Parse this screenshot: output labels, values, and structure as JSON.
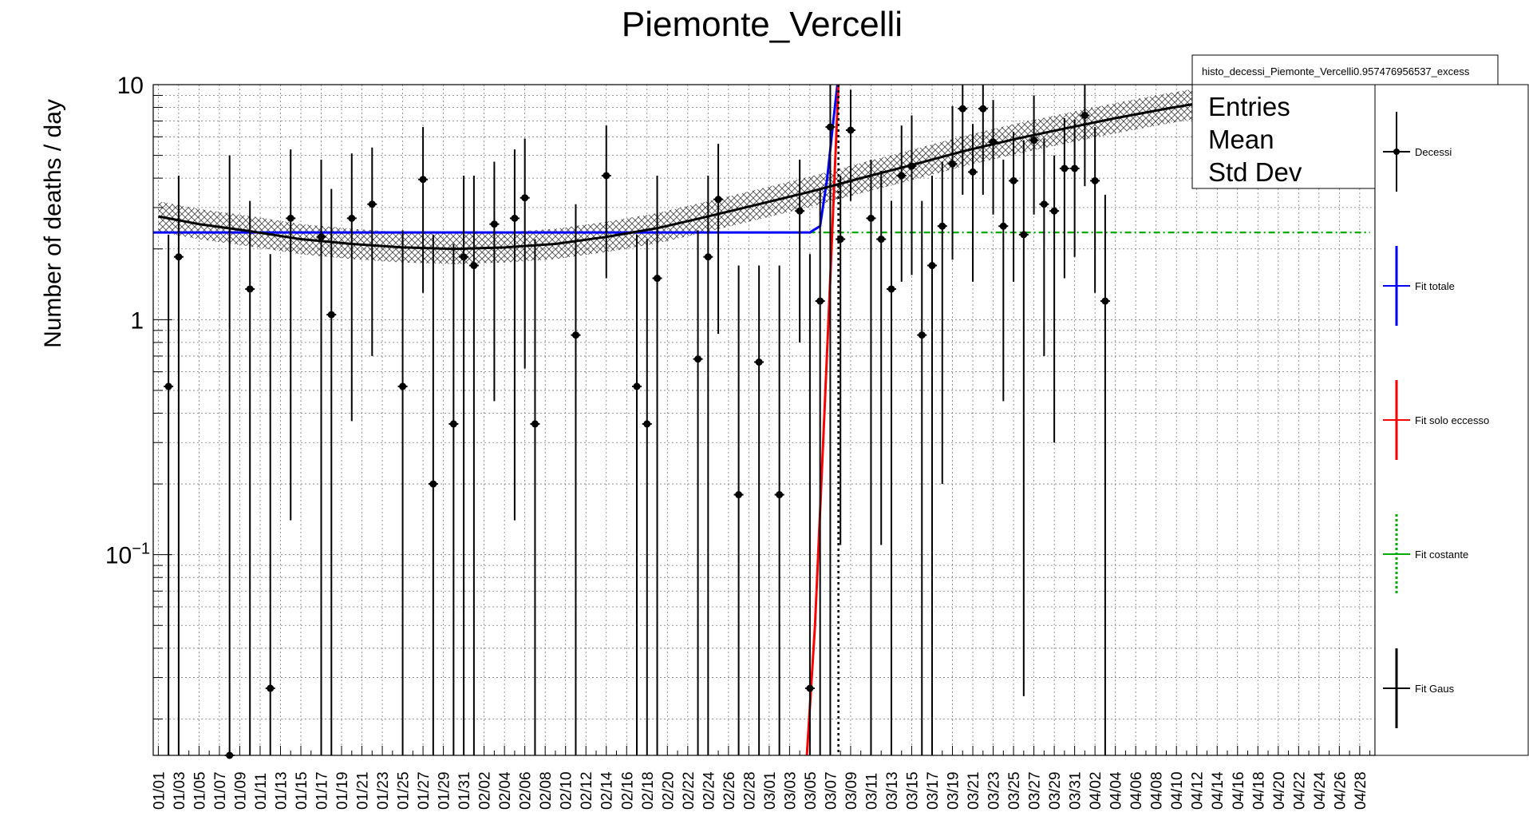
{
  "chart_data": {
    "type": "scatter",
    "title": "Piemonte_Vercelli",
    "ylabel": "Number of deaths / day",
    "xlabel": "",
    "yscale": "log",
    "ylim": [
      0.014,
      10
    ],
    "grid": true,
    "y_ticks": [
      {
        "value": 10,
        "label": "10"
      },
      {
        "value": 1,
        "label": "1"
      },
      {
        "value": 0.1,
        "label": "10",
        "sup": "−1"
      }
    ],
    "x_tick_labels": [
      "01/01",
      "01/03",
      "01/05",
      "01/07",
      "01/09",
      "01/11",
      "01/13",
      "01/15",
      "01/17",
      "01/19",
      "01/21",
      "01/23",
      "01/25",
      "01/27",
      "01/29",
      "01/31",
      "02/02",
      "02/04",
      "02/06",
      "02/08",
      "02/10",
      "02/12",
      "02/14",
      "02/16",
      "02/18",
      "02/20",
      "02/22",
      "02/24",
      "02/26",
      "02/28",
      "03/01",
      "03/03",
      "03/05",
      "03/07",
      "03/09",
      "03/11",
      "03/13",
      "03/15",
      "03/17",
      "03/19",
      "03/21",
      "03/23",
      "03/25",
      "03/27",
      "03/29",
      "03/31",
      "04/02",
      "04/04",
      "04/06",
      "04/08",
      "04/10",
      "04/12",
      "04/14",
      "04/16",
      "04/18",
      "04/20",
      "04/22",
      "04/24",
      "04/26",
      "04/28"
    ],
    "n_days": 120,
    "vertical_marker_day": 67.8,
    "stats_box": {
      "title": "histo_decessi_Piemonte_Vercelli0.957476956537_excess",
      "rows": [
        "Entries",
        "Mean",
        "Std Dev"
      ]
    },
    "legend": {
      "placement": "right",
      "entries": [
        {
          "label": "Decessi",
          "color": "#000000",
          "style": "marker"
        },
        {
          "label": "Fit totale",
          "color": "#0000ff",
          "style": "line"
        },
        {
          "label": "Fit solo eccesso",
          "color": "#ff0000",
          "style": "line"
        },
        {
          "label": "Fit costante",
          "color": "#00aa00",
          "style": "dashed"
        },
        {
          "label": "Fit Gaus",
          "color": "#000000",
          "style": "line"
        }
      ]
    },
    "series": [
      {
        "name": "Decessi",
        "color": "#000000",
        "points": [
          {
            "day": 2,
            "y": 0.52,
            "lo": 0.014,
            "hi": 2.3
          },
          {
            "day": 3,
            "y": 1.85,
            "lo": 0.014,
            "hi": 4.1
          },
          {
            "day": 8,
            "y": 0.014,
            "lo": 0.014,
            "hi": 5.0
          },
          {
            "day": 10,
            "y": 1.35,
            "lo": 0.014,
            "hi": 3.2
          },
          {
            "day": 12,
            "y": 0.027,
            "lo": 0.014,
            "hi": 1.9
          },
          {
            "day": 14,
            "y": 2.7,
            "lo": 0.14,
            "hi": 5.3
          },
          {
            "day": 17,
            "y": 2.25,
            "lo": 0.014,
            "hi": 4.8
          },
          {
            "day": 18,
            "y": 1.05,
            "lo": 0.014,
            "hi": 3.6
          },
          {
            "day": 20,
            "y": 2.7,
            "lo": 0.37,
            "hi": 5.1
          },
          {
            "day": 22,
            "y": 3.1,
            "lo": 0.7,
            "hi": 5.4
          },
          {
            "day": 25,
            "y": 0.52,
            "lo": 0.014,
            "hi": 2.4
          },
          {
            "day": 27,
            "y": 3.95,
            "lo": 1.3,
            "hi": 6.6
          },
          {
            "day": 28,
            "y": 0.2,
            "lo": 0.014,
            "hi": 2.3
          },
          {
            "day": 30,
            "y": 0.36,
            "lo": 0.014,
            "hi": 2.1
          },
          {
            "day": 31,
            "y": 1.85,
            "lo": 0.014,
            "hi": 4.1
          },
          {
            "day": 32,
            "y": 1.7,
            "lo": 0.014,
            "hi": 4.1
          },
          {
            "day": 34,
            "y": 2.55,
            "lo": 0.45,
            "hi": 4.7
          },
          {
            "day": 36,
            "y": 2.7,
            "lo": 0.14,
            "hi": 5.3
          },
          {
            "day": 37,
            "y": 3.3,
            "lo": 0.62,
            "hi": 5.9
          },
          {
            "day": 38,
            "y": 0.36,
            "lo": 0.014,
            "hi": 2.2
          },
          {
            "day": 42,
            "y": 0.86,
            "lo": 0.014,
            "hi": 3.1
          },
          {
            "day": 45,
            "y": 4.1,
            "lo": 1.5,
            "hi": 6.7
          },
          {
            "day": 48,
            "y": 0.52,
            "lo": 0.014,
            "hi": 2.3
          },
          {
            "day": 49,
            "y": 0.36,
            "lo": 0.014,
            "hi": 2.2
          },
          {
            "day": 50,
            "y": 1.5,
            "lo": 0.014,
            "hi": 4.1
          },
          {
            "day": 54,
            "y": 0.68,
            "lo": 0.014,
            "hi": 2.4
          },
          {
            "day": 55,
            "y": 1.85,
            "lo": 0.014,
            "hi": 4.1
          },
          {
            "day": 56,
            "y": 3.25,
            "lo": 0.87,
            "hi": 5.6
          },
          {
            "day": 58,
            "y": 0.18,
            "lo": 0.014,
            "hi": 1.7
          },
          {
            "day": 60,
            "y": 0.66,
            "lo": 0.014,
            "hi": 1.7
          },
          {
            "day": 62,
            "y": 0.18,
            "lo": 0.014,
            "hi": 1.7
          },
          {
            "day": 64,
            "y": 2.9,
            "lo": 0.8,
            "hi": 4.8
          },
          {
            "day": 65,
            "y": 0.027,
            "lo": 0.014,
            "hi": 1.9
          },
          {
            "day": 66,
            "y": 1.2,
            "lo": 0.014,
            "hi": 3.6
          },
          {
            "day": 67,
            "y": 6.6,
            "lo": 0.014,
            "hi": 10
          },
          {
            "day": 68,
            "y": 2.2,
            "lo": 0.11,
            "hi": 4.1
          },
          {
            "day": 69,
            "y": 6.4,
            "lo": 3.2,
            "hi": 9.5
          },
          {
            "day": 71,
            "y": 2.7,
            "lo": 0.014,
            "hi": 4.8
          },
          {
            "day": 72,
            "y": 2.2,
            "lo": 0.11,
            "hi": 4.3
          },
          {
            "day": 73,
            "y": 1.35,
            "lo": 0.014,
            "hi": 3.2
          },
          {
            "day": 74,
            "y": 4.1,
            "lo": 1.45,
            "hi": 6.7
          },
          {
            "day": 75,
            "y": 4.5,
            "lo": 1.55,
            "hi": 7.4
          },
          {
            "day": 76,
            "y": 0.86,
            "lo": 0.014,
            "hi": 3.2
          },
          {
            "day": 77,
            "y": 1.7,
            "lo": 0.014,
            "hi": 4.1
          },
          {
            "day": 78,
            "y": 2.5,
            "lo": 0.2,
            "hi": 4.7
          },
          {
            "day": 79,
            "y": 4.6,
            "lo": 1.8,
            "hi": 8.1
          },
          {
            "day": 80,
            "y": 7.9,
            "lo": 3.4,
            "hi": 10
          },
          {
            "day": 81,
            "y": 4.25,
            "lo": 1.45,
            "hi": 6.8
          },
          {
            "day": 82,
            "y": 7.9,
            "lo": 3.4,
            "hi": 10
          },
          {
            "day": 83,
            "y": 5.7,
            "lo": 2.8,
            "hi": 8.6
          },
          {
            "day": 84,
            "y": 2.5,
            "lo": 0.45,
            "hi": 4.8
          },
          {
            "day": 85,
            "y": 3.9,
            "lo": 1.45,
            "hi": 6.3
          },
          {
            "day": 86,
            "y": 2.3,
            "lo": 0.025,
            "hi": 5.8
          },
          {
            "day": 87,
            "y": 5.8,
            "lo": 2.8,
            "hi": 9.0
          },
          {
            "day": 88,
            "y": 3.1,
            "lo": 0.7,
            "hi": 5.9
          },
          {
            "day": 89,
            "y": 2.9,
            "lo": 0.3,
            "hi": 5.0
          },
          {
            "day": 90,
            "y": 4.4,
            "lo": 1.5,
            "hi": 7.2
          },
          {
            "day": 91,
            "y": 4.4,
            "lo": 1.85,
            "hi": 7.1
          },
          {
            "day": 92,
            "y": 7.4,
            "lo": 3.7,
            "hi": 10
          },
          {
            "day": 93,
            "y": 3.9,
            "lo": 1.3,
            "hi": 6.6
          },
          {
            "day": 94,
            "y": 1.2,
            "lo": 0.014,
            "hi": 3.4
          }
        ]
      },
      {
        "name": "Fit totale",
        "color": "#0000ff",
        "points": [
          [
            0,
            2.35
          ],
          [
            65,
            2.35
          ],
          [
            66,
            2.5
          ],
          [
            66.7,
            4.0
          ],
          [
            67.3,
            7.0
          ],
          [
            67.7,
            10
          ]
        ]
      },
      {
        "name": "Fit solo eccesso",
        "color": "#ff0000",
        "points": [
          [
            64.7,
            0.014
          ],
          [
            65.5,
            0.05
          ],
          [
            66.3,
            0.3
          ],
          [
            67.0,
            1.5
          ],
          [
            67.8,
            10
          ]
        ]
      },
      {
        "name": "Fit costante",
        "color": "#00aa00",
        "points": [
          [
            0,
            2.35
          ],
          [
            120,
            2.35
          ]
        ]
      },
      {
        "name": "Fit Gaus",
        "color": "#000000",
        "points": [
          [
            1,
            2.75
          ],
          [
            5,
            2.55
          ],
          [
            10,
            2.38
          ],
          [
            15,
            2.2
          ],
          [
            20,
            2.1
          ],
          [
            25,
            2.03
          ],
          [
            30,
            2.0
          ],
          [
            35,
            2.03
          ],
          [
            40,
            2.1
          ],
          [
            45,
            2.25
          ],
          [
            50,
            2.45
          ],
          [
            55,
            2.75
          ],
          [
            60,
            3.1
          ],
          [
            65,
            3.5
          ],
          [
            70,
            4.0
          ],
          [
            75,
            4.55
          ],
          [
            80,
            5.2
          ],
          [
            85,
            5.85
          ],
          [
            90,
            6.5
          ],
          [
            95,
            7.2
          ],
          [
            100,
            7.9
          ],
          [
            105,
            8.6
          ],
          [
            110,
            9.1
          ],
          [
            115,
            9.6
          ],
          [
            119,
            9.9
          ]
        ],
        "band": true
      }
    ]
  }
}
